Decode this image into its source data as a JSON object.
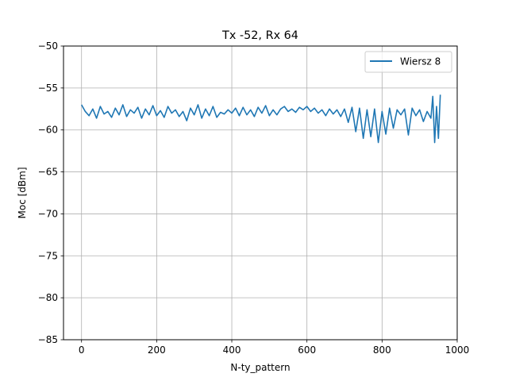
{
  "chart_data": {
    "type": "line",
    "title": "Tx -52, Rx 64",
    "xlabel": "N-ty_pattern",
    "ylabel": "Moc [dBm]",
    "xlim": [
      -48,
      1000
    ],
    "ylim": [
      -85,
      -50
    ],
    "xticks": [
      0,
      200,
      400,
      600,
      800,
      1000
    ],
    "yticks": [
      -85,
      -80,
      -75,
      -70,
      -65,
      -60,
      -55,
      -50
    ],
    "grid": true,
    "legend_position": "top-right",
    "series": [
      {
        "name": "Wiersz 8",
        "color": "#1f77b4",
        "x": [
          0,
          10,
          20,
          30,
          40,
          50,
          60,
          70,
          80,
          90,
          100,
          110,
          120,
          130,
          140,
          150,
          160,
          170,
          180,
          190,
          200,
          210,
          220,
          230,
          240,
          250,
          260,
          270,
          280,
          290,
          300,
          310,
          320,
          330,
          340,
          350,
          360,
          370,
          380,
          390,
          400,
          410,
          420,
          430,
          440,
          450,
          460,
          470,
          480,
          490,
          500,
          510,
          520,
          530,
          540,
          550,
          560,
          570,
          580,
          590,
          600,
          610,
          620,
          630,
          640,
          650,
          660,
          670,
          680,
          690,
          700,
          710,
          720,
          730,
          740,
          750,
          760,
          770,
          780,
          790,
          800,
          810,
          820,
          830,
          840,
          850,
          860,
          870,
          880,
          890,
          900,
          910,
          920,
          930,
          935,
          940,
          945,
          950,
          955
        ],
        "y": [
          -57.0,
          -57.8,
          -58.3,
          -57.5,
          -58.6,
          -57.2,
          -58.1,
          -57.8,
          -58.5,
          -57.4,
          -58.2,
          -57.0,
          -58.4,
          -57.6,
          -58.0,
          -57.3,
          -58.6,
          -57.5,
          -58.2,
          -57.1,
          -58.3,
          -57.7,
          -58.5,
          -57.2,
          -58.0,
          -57.6,
          -58.4,
          -57.8,
          -58.9,
          -57.4,
          -58.2,
          -57.0,
          -58.6,
          -57.5,
          -58.3,
          -57.2,
          -58.5,
          -57.9,
          -58.1,
          -57.6,
          -58.0,
          -57.4,
          -58.3,
          -57.3,
          -58.2,
          -57.6,
          -58.4,
          -57.3,
          -58.0,
          -57.1,
          -58.3,
          -57.6,
          -58.2,
          -57.5,
          -57.2,
          -57.8,
          -57.5,
          -57.9,
          -57.3,
          -57.6,
          -57.2,
          -57.8,
          -57.4,
          -58.0,
          -57.6,
          -58.3,
          -57.5,
          -58.1,
          -57.6,
          -58.4,
          -57.5,
          -59.1,
          -57.3,
          -60.2,
          -57.4,
          -61.0,
          -57.6,
          -60.8,
          -57.5,
          -61.5,
          -57.8,
          -60.5,
          -57.4,
          -59.8,
          -57.6,
          -58.2,
          -57.5,
          -60.6,
          -57.4,
          -58.3,
          -57.6,
          -59.0,
          -57.8,
          -58.6,
          -56.0,
          -61.5,
          -57.2,
          -61.0,
          -55.8
        ]
      }
    ]
  }
}
